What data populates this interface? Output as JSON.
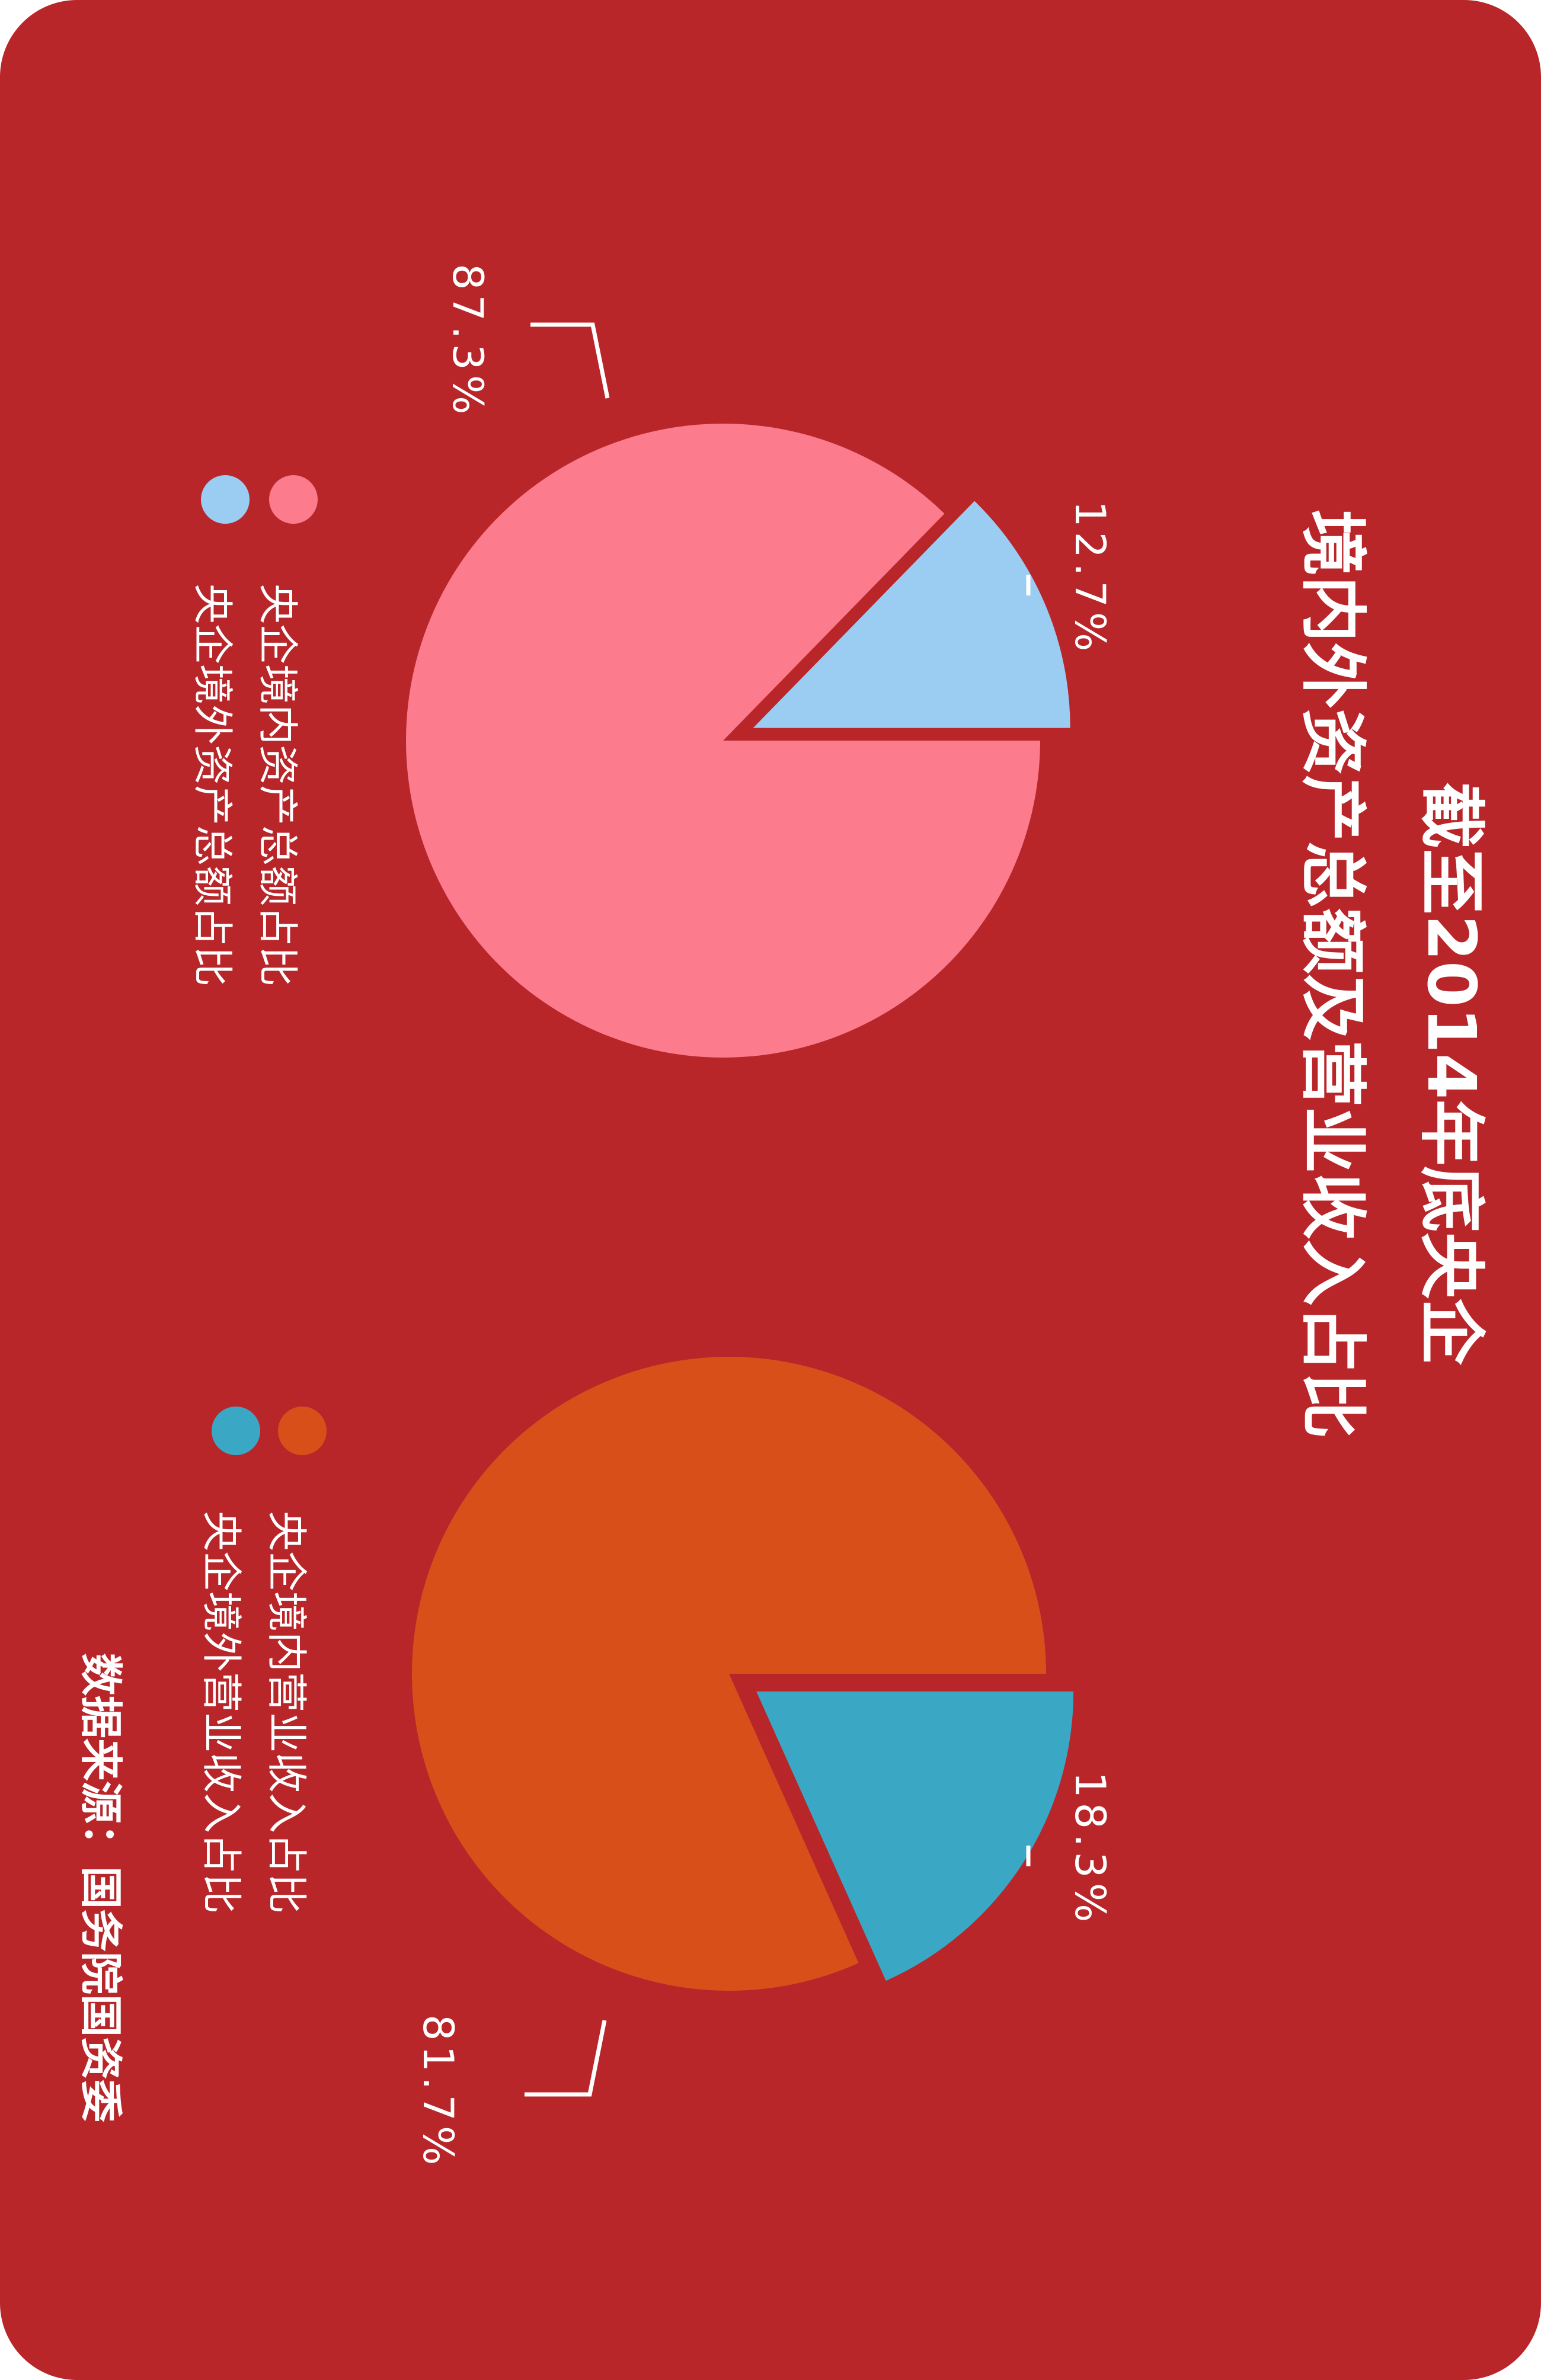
{
  "title": {
    "line1": "截至2014年底央企",
    "line2": "境内外资产总额及营业收入占比"
  },
  "source": "数据来源：国务院国资委",
  "colors": {
    "background": "#b8262a",
    "text": "#ffffff"
  },
  "chart_data": [
    {
      "type": "pie",
      "title": "",
      "series": [
        {
          "name": "央企境内资产总额占比",
          "value": 87.3,
          "label": "87.3%",
          "color": "#fc7b8d"
        },
        {
          "name": "央企境外资产总额占比",
          "value": 12.7,
          "label": "12.7%",
          "color": "#9bcdf2"
        }
      ],
      "exploded": "央企境外资产总额占比",
      "legend": "left"
    },
    {
      "type": "pie",
      "title": "",
      "series": [
        {
          "name": "央企境内营业收入占比",
          "value": 81.7,
          "label": "81.7%",
          "color": "#d94f1a"
        },
        {
          "name": "央企境外营业收入占比",
          "value": 18.3,
          "label": "18.3%",
          "color": "#3aa8c5"
        }
      ],
      "exploded": "央企境外营业收入占比",
      "legend": "left"
    }
  ]
}
